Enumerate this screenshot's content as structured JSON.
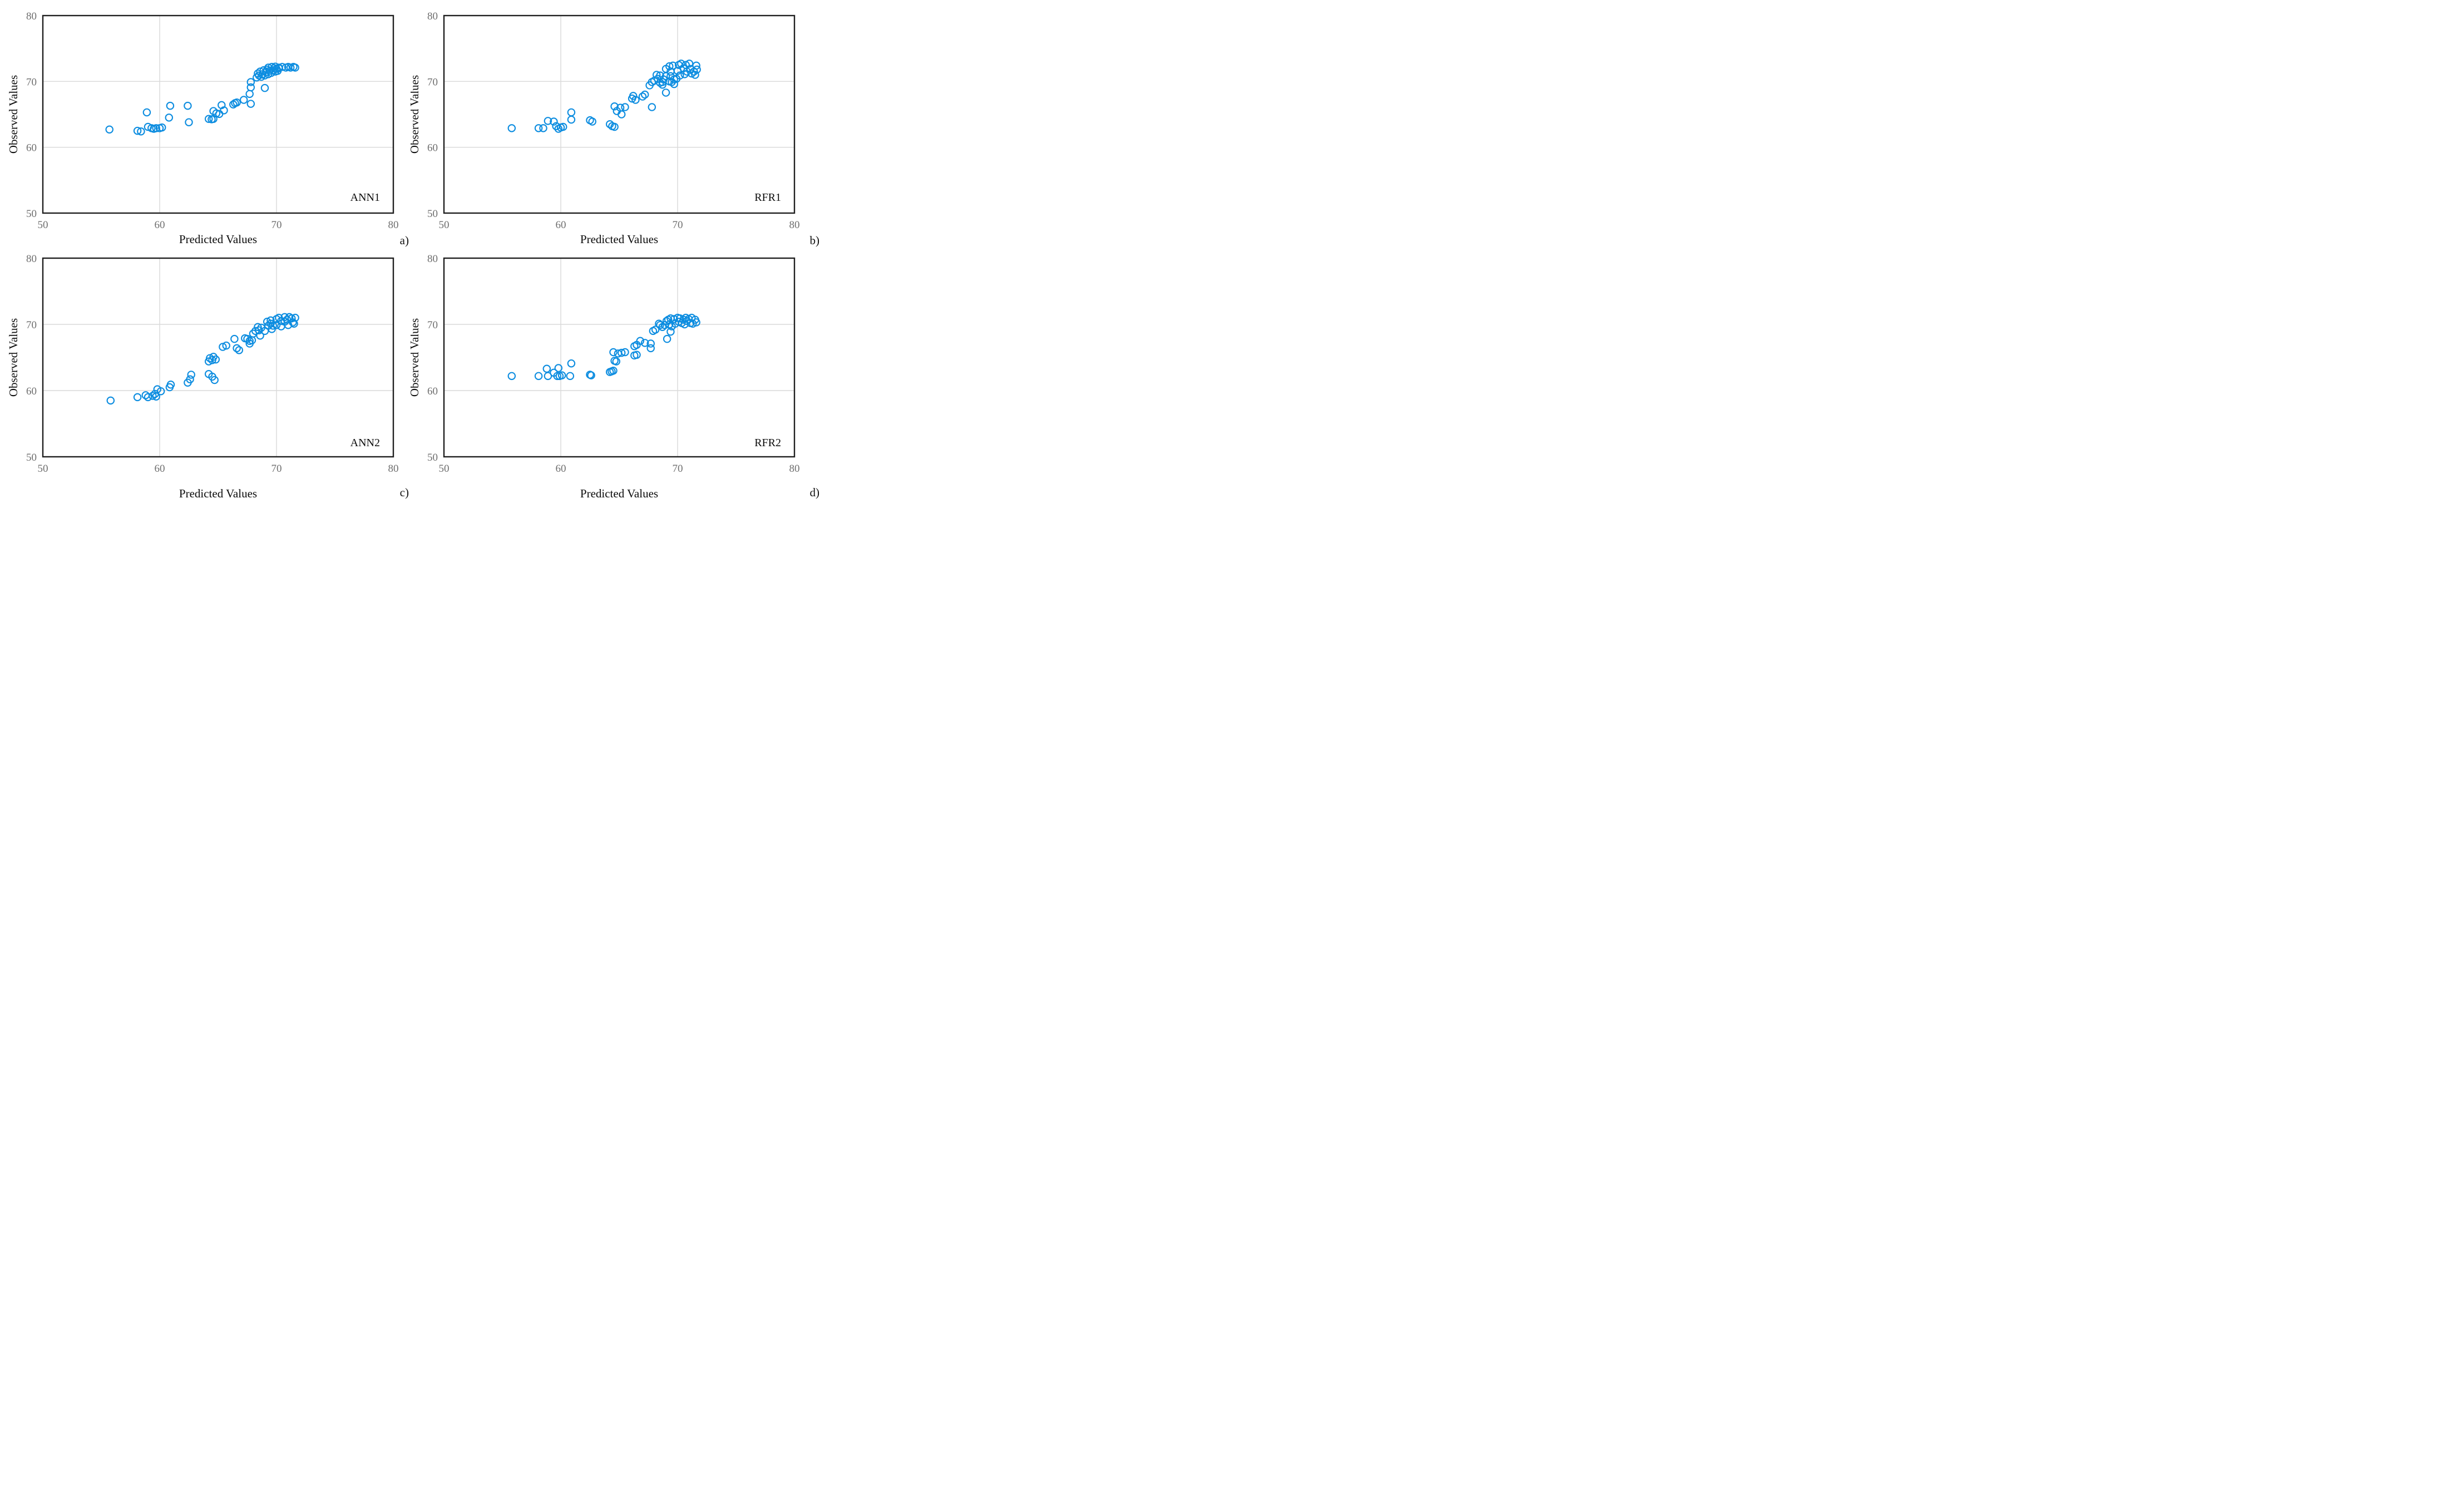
{
  "figure": {
    "background": "#ffffff",
    "marker_color": "#0d8de0",
    "grid_color": "#d9d9d9",
    "border_color": "#1f1f1f",
    "tick_color": "#6e6e6e",
    "text_color": "#0a0a0a"
  },
  "chart_data": [
    {
      "type": "scatter",
      "label": "ANN1",
      "caption": "a)",
      "xlabel": "Predicted Values",
      "ylabel": "Observed Values",
      "xlim": [
        50,
        80
      ],
      "ylim": [
        50,
        80
      ],
      "xticks": [
        50,
        60,
        70,
        80
      ],
      "yticks": [
        50,
        60,
        70,
        80
      ],
      "grid_x": [
        60,
        70
      ],
      "grid_y": [
        60,
        70
      ],
      "marker": "open-circle",
      "points": [
        [
          55.7,
          62.7
        ],
        [
          58.1,
          62.5
        ],
        [
          58.4,
          62.4
        ],
        [
          58.9,
          65.3
        ],
        [
          59.0,
          63.1
        ],
        [
          59.3,
          62.9
        ],
        [
          59.5,
          62.8
        ],
        [
          59.7,
          62.9
        ],
        [
          60.0,
          62.9
        ],
        [
          60.2,
          63.0
        ],
        [
          60.8,
          64.5
        ],
        [
          60.9,
          66.3
        ],
        [
          62.4,
          66.3
        ],
        [
          62.5,
          63.8
        ],
        [
          64.2,
          64.3
        ],
        [
          64.45,
          64.25
        ],
        [
          64.6,
          64.3
        ],
        [
          64.6,
          65.5
        ],
        [
          64.85,
          65.15
        ],
        [
          65.1,
          65.05
        ],
        [
          65.3,
          66.4
        ],
        [
          65.5,
          65.6
        ],
        [
          66.3,
          66.5
        ],
        [
          66.45,
          66.7
        ],
        [
          66.6,
          66.8
        ],
        [
          67.2,
          67.2
        ],
        [
          67.8,
          66.6
        ],
        [
          67.7,
          68.1
        ],
        [
          67.8,
          69.1
        ],
        [
          67.8,
          69.9
        ],
        [
          69.0,
          69.0
        ],
        [
          68.3,
          70.6
        ],
        [
          68.4,
          71.2
        ],
        [
          68.5,
          70.9
        ],
        [
          68.6,
          71.5
        ],
        [
          68.7,
          70.7
        ],
        [
          68.8,
          71.1
        ],
        [
          68.9,
          71.7
        ],
        [
          69.0,
          70.9
        ],
        [
          69.1,
          71.4
        ],
        [
          69.2,
          71.8
        ],
        [
          69.3,
          71.1
        ],
        [
          69.4,
          71.6
        ],
        [
          69.55,
          71.3
        ],
        [
          69.7,
          71.7
        ],
        [
          69.8,
          72.0
        ],
        [
          69.9,
          71.5
        ],
        [
          70.0,
          71.9
        ],
        [
          70.1,
          71.6
        ],
        [
          70.2,
          72.0
        ],
        [
          69.3,
          72.1
        ],
        [
          69.6,
          72.2
        ],
        [
          69.9,
          72.25
        ],
        [
          70.2,
          72.1
        ],
        [
          70.5,
          72.2
        ],
        [
          70.8,
          72.1
        ],
        [
          71.0,
          72.2
        ],
        [
          71.2,
          72.1
        ],
        [
          71.45,
          72.2
        ],
        [
          71.6,
          72.1
        ]
      ]
    },
    {
      "type": "scatter",
      "label": "RFR1",
      "caption": "b)",
      "xlabel": "Predicted Values",
      "ylabel": "Observed Values",
      "xlim": [
        50,
        80
      ],
      "ylim": [
        50,
        80
      ],
      "xticks": [
        50,
        60,
        70,
        80
      ],
      "yticks": [
        50,
        60,
        70,
        80
      ],
      "grid_x": [
        60,
        70
      ],
      "grid_y": [
        60,
        70
      ],
      "marker": "open-circle",
      "points": [
        [
          55.8,
          62.9
        ],
        [
          58.1,
          62.9
        ],
        [
          58.5,
          62.9
        ],
        [
          58.9,
          64.0
        ],
        [
          59.4,
          63.9
        ],
        [
          59.6,
          63.2
        ],
        [
          59.8,
          62.8
        ],
        [
          60.0,
          63.0
        ],
        [
          60.2,
          63.1
        ],
        [
          60.9,
          65.3
        ],
        [
          60.9,
          64.2
        ],
        [
          62.5,
          64.1
        ],
        [
          62.7,
          63.9
        ],
        [
          64.2,
          63.5
        ],
        [
          64.4,
          63.2
        ],
        [
          64.6,
          63.1
        ],
        [
          64.6,
          66.2
        ],
        [
          64.8,
          65.5
        ],
        [
          65.1,
          66.0
        ],
        [
          65.2,
          65.0
        ],
        [
          65.5,
          66.1
        ],
        [
          66.1,
          67.4
        ],
        [
          66.2,
          67.8
        ],
        [
          66.4,
          67.2
        ],
        [
          67.0,
          67.7
        ],
        [
          67.2,
          68.0
        ],
        [
          67.8,
          66.1
        ],
        [
          69.0,
          68.3
        ],
        [
          67.6,
          69.4
        ],
        [
          67.8,
          69.9
        ],
        [
          68.0,
          70.1
        ],
        [
          68.2,
          71.0
        ],
        [
          68.3,
          70.4
        ],
        [
          68.5,
          70.9
        ],
        [
          68.5,
          69.8
        ],
        [
          68.7,
          69.9
        ],
        [
          68.7,
          69.5
        ],
        [
          68.8,
          70.3
        ],
        [
          69.0,
          70.8
        ],
        [
          69.0,
          71.9
        ],
        [
          69.3,
          72.3
        ],
        [
          69.3,
          70.0
        ],
        [
          69.4,
          71.5
        ],
        [
          69.4,
          70.8
        ],
        [
          69.5,
          69.9
        ],
        [
          69.6,
          72.4
        ],
        [
          69.7,
          70.3
        ],
        [
          69.7,
          69.6
        ],
        [
          69.9,
          70.4
        ],
        [
          70.0,
          71.6
        ],
        [
          70.1,
          72.5
        ],
        [
          70.2,
          70.9
        ],
        [
          70.3,
          72.7
        ],
        [
          70.5,
          72.0
        ],
        [
          70.6,
          71.1
        ],
        [
          70.7,
          72.5
        ],
        [
          70.8,
          71.5
        ],
        [
          71.0,
          72.7
        ],
        [
          71.1,
          71.9
        ],
        [
          71.2,
          71.2
        ],
        [
          71.4,
          71.5
        ],
        [
          71.5,
          71.0
        ],
        [
          71.6,
          72.4
        ],
        [
          71.65,
          71.8
        ]
      ]
    },
    {
      "type": "scatter",
      "label": "ANN2",
      "caption": "c)",
      "xlabel": "Predicted Values",
      "ylabel": "Observed Values",
      "xlim": [
        50,
        80
      ],
      "ylim": [
        50,
        80
      ],
      "xticks": [
        50,
        60,
        70,
        80
      ],
      "yticks": [
        50,
        60,
        70,
        80
      ],
      "grid_x": [
        60,
        70
      ],
      "grid_y": [
        60,
        70
      ],
      "marker": "open-circle",
      "points": [
        [
          55.8,
          58.5
        ],
        [
          58.1,
          59.0
        ],
        [
          58.8,
          59.3
        ],
        [
          59.0,
          59.0
        ],
        [
          59.4,
          59.2
        ],
        [
          59.6,
          59.5
        ],
        [
          59.7,
          59.1
        ],
        [
          59.8,
          60.2
        ],
        [
          60.1,
          59.9
        ],
        [
          60.85,
          60.5
        ],
        [
          60.95,
          60.9
        ],
        [
          62.4,
          61.2
        ],
        [
          62.6,
          61.7
        ],
        [
          62.7,
          62.4
        ],
        [
          64.2,
          62.5
        ],
        [
          64.5,
          62.1
        ],
        [
          64.7,
          61.6
        ],
        [
          64.2,
          64.4
        ],
        [
          64.3,
          64.9
        ],
        [
          64.5,
          64.6
        ],
        [
          64.6,
          65.1
        ],
        [
          64.8,
          64.7
        ],
        [
          65.4,
          66.6
        ],
        [
          65.7,
          66.8
        ],
        [
          66.4,
          67.8
        ],
        [
          66.6,
          66.4
        ],
        [
          66.8,
          66.1
        ],
        [
          67.3,
          67.9
        ],
        [
          67.5,
          67.8
        ],
        [
          67.7,
          67.5
        ],
        [
          67.9,
          67.6
        ],
        [
          67.7,
          67.1
        ],
        [
          68.0,
          68.6
        ],
        [
          68.2,
          69.0
        ],
        [
          68.4,
          69.6
        ],
        [
          68.5,
          69.1
        ],
        [
          68.6,
          68.3
        ],
        [
          68.7,
          69.5
        ],
        [
          69.0,
          69.0
        ],
        [
          69.2,
          70.4
        ],
        [
          69.3,
          69.8
        ],
        [
          69.5,
          70.6
        ],
        [
          69.5,
          70.1
        ],
        [
          69.6,
          69.3
        ],
        [
          69.7,
          69.8
        ],
        [
          70.0,
          70.8
        ],
        [
          70.0,
          69.9
        ],
        [
          70.2,
          71.0
        ],
        [
          70.4,
          70.5
        ],
        [
          70.4,
          69.7
        ],
        [
          70.7,
          71.1
        ],
        [
          70.7,
          70.4
        ],
        [
          70.9,
          70.7
        ],
        [
          71.0,
          69.9
        ],
        [
          71.1,
          71.1
        ],
        [
          71.3,
          70.9
        ],
        [
          71.4,
          70.3
        ],
        [
          71.5,
          70.1
        ],
        [
          71.6,
          71.0
        ]
      ]
    },
    {
      "type": "scatter",
      "label": "RFR2",
      "caption": "d)",
      "xlabel": "Predicted Values",
      "ylabel": "Observed Values",
      "xlim": [
        50,
        80
      ],
      "ylim": [
        50,
        80
      ],
      "xticks": [
        50,
        60,
        70,
        80
      ],
      "yticks": [
        50,
        60,
        70,
        80
      ],
      "grid_x": [
        60,
        70
      ],
      "grid_y": [
        60,
        70
      ],
      "marker": "open-circle",
      "points": [
        [
          55.8,
          62.2
        ],
        [
          58.1,
          62.2
        ],
        [
          58.8,
          63.3
        ],
        [
          58.9,
          62.2
        ],
        [
          59.4,
          62.7
        ],
        [
          59.7,
          62.2
        ],
        [
          59.8,
          63.4
        ],
        [
          59.9,
          62.2
        ],
        [
          60.1,
          62.3
        ],
        [
          60.8,
          62.2
        ],
        [
          60.9,
          64.1
        ],
        [
          62.5,
          62.4
        ],
        [
          62.6,
          62.3
        ],
        [
          64.2,
          62.8
        ],
        [
          64.35,
          62.9
        ],
        [
          64.5,
          63.0
        ],
        [
          64.6,
          64.5
        ],
        [
          64.75,
          64.4
        ],
        [
          64.5,
          65.8
        ],
        [
          64.9,
          65.6
        ],
        [
          65.2,
          65.7
        ],
        [
          65.5,
          65.8
        ],
        [
          66.3,
          65.3
        ],
        [
          66.5,
          65.4
        ],
        [
          66.3,
          66.7
        ],
        [
          66.5,
          66.9
        ],
        [
          66.8,
          67.5
        ],
        [
          67.2,
          67.2
        ],
        [
          67.7,
          67.1
        ],
        [
          67.7,
          66.4
        ],
        [
          67.9,
          69.0
        ],
        [
          68.1,
          69.2
        ],
        [
          69.1,
          67.8
        ],
        [
          69.4,
          68.9
        ],
        [
          68.4,
          70.1
        ],
        [
          68.5,
          69.9
        ],
        [
          68.7,
          69.6
        ],
        [
          68.9,
          69.9
        ],
        [
          69.05,
          70.5
        ],
        [
          69.2,
          70.7
        ],
        [
          69.3,
          70.0
        ],
        [
          69.4,
          70.9
        ],
        [
          69.5,
          69.7
        ],
        [
          69.7,
          70.8
        ],
        [
          69.8,
          70.1
        ],
        [
          70.0,
          71.0
        ],
        [
          70.1,
          70.4
        ],
        [
          70.2,
          70.9
        ],
        [
          70.35,
          70.2
        ],
        [
          70.5,
          70.7
        ],
        [
          70.6,
          70.0
        ],
        [
          70.7,
          71.0
        ],
        [
          70.8,
          70.5
        ],
        [
          70.95,
          70.8
        ],
        [
          71.1,
          70.2
        ],
        [
          71.2,
          71.0
        ],
        [
          71.3,
          70.1
        ],
        [
          71.5,
          70.7
        ],
        [
          71.6,
          70.3
        ]
      ]
    }
  ]
}
